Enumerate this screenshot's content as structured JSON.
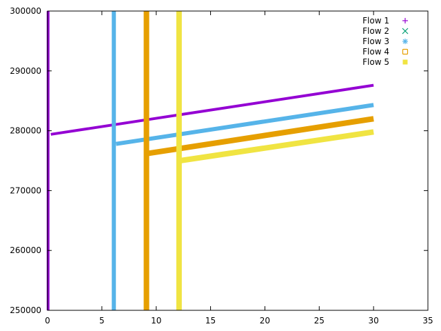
{
  "chart_data": {
    "type": "scatter",
    "title": "",
    "xlabel": "",
    "ylabel": "",
    "xlim": [
      0,
      35
    ],
    "ylim": [
      250000,
      300000
    ],
    "x_ticks": [
      0,
      5,
      10,
      15,
      20,
      25,
      30,
      35
    ],
    "y_ticks": [
      250000,
      260000,
      270000,
      280000,
      290000,
      300000
    ],
    "x_tick_labels": [
      "0",
      "5",
      "10",
      "15",
      "20",
      "25",
      "30",
      "35"
    ],
    "y_tick_labels": [
      "250000",
      "260000",
      "270000",
      "280000",
      "290000",
      "300000"
    ],
    "grid": false,
    "legend": "top-right",
    "series": [
      {
        "name": "Flow 1",
        "marker": "plus",
        "color": "#9400d3",
        "vertical": {
          "x": 0.05,
          "y": [
            250000,
            300000
          ]
        },
        "line": {
          "x": [
            0.3,
            30.0
          ],
          "y": [
            279400,
            287600
          ]
        }
      },
      {
        "name": "Flow 2",
        "marker": "cross",
        "color": "#009e73",
        "vertical": null,
        "line": null
      },
      {
        "name": "Flow 3",
        "marker": "star",
        "color": "#56b4e9",
        "vertical": {
          "x": 6.1,
          "y": [
            250000,
            300000
          ]
        },
        "line": {
          "x": [
            6.3,
            30.0
          ],
          "y": [
            277800,
            284300
          ]
        }
      },
      {
        "name": "Flow 4",
        "marker": "square-open",
        "color": "#e69f00",
        "vertical": {
          "x": 9.1,
          "y": [
            250000,
            300000
          ]
        },
        "line": {
          "x": [
            9.2,
            30.0
          ],
          "y": [
            276200,
            282000
          ]
        }
      },
      {
        "name": "Flow 5",
        "marker": "square-filled",
        "color": "#f0e442",
        "vertical": {
          "x": 12.1,
          "y": [
            250000,
            300000
          ]
        },
        "line": {
          "x": [
            12.2,
            30.0
          ],
          "y": [
            275000,
            279800
          ]
        }
      }
    ]
  }
}
